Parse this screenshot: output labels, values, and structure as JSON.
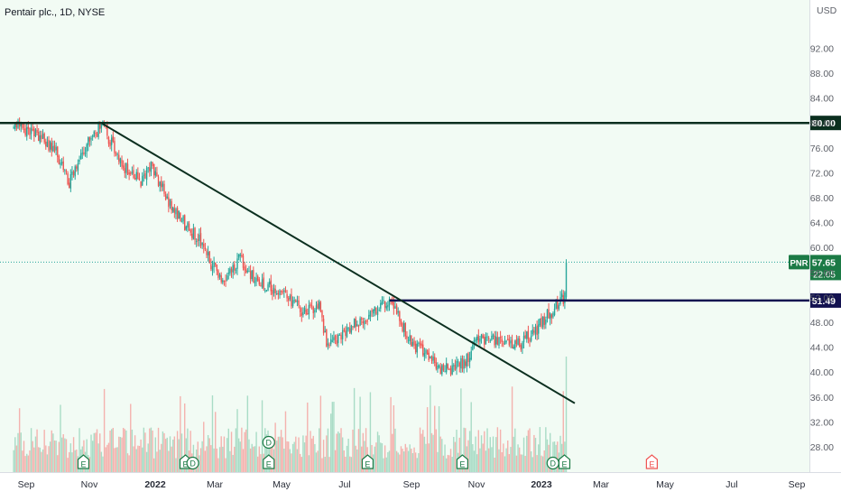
{
  "chart_data": {
    "type": "candlestick",
    "title": "Pentair plc., 1D, NYSE",
    "currency": "USD",
    "ticker": "PNR",
    "last_price": "57.65",
    "countdown": "22:05",
    "y_ticks": [
      "92.00",
      "88.00",
      "84.00",
      "80.00",
      "76.00",
      "72.00",
      "68.00",
      "64.00",
      "60.00",
      "56.00",
      "52.00",
      "48.00",
      "44.00",
      "40.00",
      "36.00",
      "32.00",
      "28.00"
    ],
    "x_ticks": [
      {
        "label": "Sep",
        "bold": false
      },
      {
        "label": "Nov",
        "bold": false
      },
      {
        "label": "2022",
        "bold": true
      },
      {
        "label": "Mar",
        "bold": false
      },
      {
        "label": "May",
        "bold": false
      },
      {
        "label": "Jul",
        "bold": false
      },
      {
        "label": "Sep",
        "bold": false
      },
      {
        "label": "Nov",
        "bold": false
      },
      {
        "label": "2023",
        "bold": true
      },
      {
        "label": "Mar",
        "bold": false
      },
      {
        "label": "May",
        "bold": false
      },
      {
        "label": "Jul",
        "bold": false
      },
      {
        "label": "Sep",
        "bold": false
      }
    ],
    "horizontal_levels": [
      {
        "value": 80.0,
        "label": "80.00",
        "color": "#0b2f1f"
      },
      {
        "value": 51.49,
        "label": "51.49",
        "color": "#131250"
      }
    ],
    "trendline": {
      "start": {
        "date": "2021-11-12",
        "price": 80.0
      },
      "end": {
        "date": "2023-02-10",
        "price": 35.0
      }
    },
    "price_path": [
      {
        "date": "2021-08-20",
        "close": 79.5
      },
      {
        "date": "2021-09-10",
        "close": 78.5
      },
      {
        "date": "2021-10-01",
        "close": 75.0
      },
      {
        "date": "2021-10-12",
        "close": 70.5
      },
      {
        "date": "2021-10-28",
        "close": 76.0
      },
      {
        "date": "2021-11-12",
        "close": 80.0
      },
      {
        "date": "2021-12-01",
        "close": 73.5
      },
      {
        "date": "2021-12-20",
        "close": 70.5
      },
      {
        "date": "2021-12-30",
        "close": 73.0
      },
      {
        "date": "2022-01-20",
        "close": 66.0
      },
      {
        "date": "2022-02-15",
        "close": 61.0
      },
      {
        "date": "2022-03-07",
        "close": 54.5
      },
      {
        "date": "2022-03-25",
        "close": 58.0
      },
      {
        "date": "2022-04-15",
        "close": 54.0
      },
      {
        "date": "2022-05-05",
        "close": 53.0
      },
      {
        "date": "2022-05-25",
        "close": 49.5
      },
      {
        "date": "2022-06-10",
        "close": 50.5
      },
      {
        "date": "2022-06-17",
        "close": 44.0
      },
      {
        "date": "2022-07-05",
        "close": 46.5
      },
      {
        "date": "2022-07-25",
        "close": 49.0
      },
      {
        "date": "2022-08-16",
        "close": 51.3
      },
      {
        "date": "2022-09-05",
        "close": 45.0
      },
      {
        "date": "2022-09-30",
        "close": 41.0
      },
      {
        "date": "2022-10-13",
        "close": 40.2
      },
      {
        "date": "2022-10-28",
        "close": 41.8
      },
      {
        "date": "2022-11-10",
        "close": 45.5
      },
      {
        "date": "2022-11-30",
        "close": 45.0
      },
      {
        "date": "2022-12-20",
        "close": 44.5
      },
      {
        "date": "2023-01-05",
        "close": 47.0
      },
      {
        "date": "2023-01-25",
        "close": 51.0
      },
      {
        "date": "2023-02-01",
        "close": 52.0
      },
      {
        "date": "2023-02-03",
        "close": 57.65
      }
    ],
    "events": [
      {
        "date": "2021-10-26",
        "type": "E"
      },
      {
        "date": "2022-02-01",
        "type": "E"
      },
      {
        "date": "2022-02-08",
        "type": "D"
      },
      {
        "date": "2022-04-22",
        "type": "E"
      },
      {
        "date": "2022-04-22",
        "type": "D"
      },
      {
        "date": "2022-07-26",
        "type": "E"
      },
      {
        "date": "2022-10-25",
        "type": "E"
      },
      {
        "date": "2023-01-20",
        "type": "D"
      },
      {
        "date": "2023-01-31",
        "type": "E"
      },
      {
        "date": "2023-04-25",
        "type": "E",
        "upcoming": true
      }
    ],
    "colors": {
      "up": "#26a69a",
      "down": "#ef5350",
      "background_tint": "#f2fbf4"
    }
  }
}
